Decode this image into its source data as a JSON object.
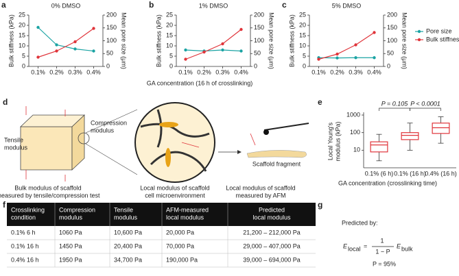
{
  "chart_data": [
    {
      "type": "line",
      "label": "a",
      "title": "0% DMSO",
      "ylabel": "Bulk stiffness (kPa)",
      "y2label": "Mean pore size (μm)",
      "categories": [
        "0.1%",
        "0.2%",
        "0.3%",
        "0.4%"
      ],
      "ylim": [
        0,
        25
      ],
      "yticks": [
        0,
        5,
        10,
        15,
        20,
        25
      ],
      "y2lim": [
        0,
        200
      ],
      "y2ticks": [
        0,
        50,
        100,
        150,
        200
      ],
      "series": [
        {
          "color": "#1aa3a3",
          "axis": "y2",
          "values": [
            152,
            84,
            68,
            60
          ]
        },
        {
          "color": "#e0343a",
          "values": [
            4.5,
            7.5,
            12,
            18.5
          ]
        }
      ]
    },
    {
      "type": "line",
      "label": "b",
      "title": "1% DMSO",
      "ylabel": "Bulk stiffness (kPa)",
      "y2label": "Mean pore size (μm)",
      "xlabel": "GA concentration (16 h of crosslinking)",
      "categories": [
        "0.1%",
        "0.2%",
        "0.3%",
        "0.4%"
      ],
      "ylim": [
        0,
        25
      ],
      "yticks": [
        0,
        5,
        10,
        15,
        20,
        25
      ],
      "y2lim": [
        0,
        200
      ],
      "y2ticks": [
        0,
        50,
        100,
        150,
        200
      ],
      "series": [
        {
          "color": "#1aa3a3",
          "axis": "y2",
          "values": [
            64,
            60,
            64,
            60
          ]
        },
        {
          "color": "#e0343a",
          "values": [
            3.5,
            7,
            11,
            18
          ]
        }
      ]
    },
    {
      "type": "line",
      "label": "c",
      "title": "5% DMSO",
      "ylabel": "Bulk stiffness (kPa)",
      "y2label": "Mean pore size (μm)",
      "legend": "right",
      "categories": [
        "0.1%",
        "0.2%",
        "0.3%",
        "0.4%"
      ],
      "ylim": [
        0,
        25
      ],
      "yticks": [
        0,
        5,
        10,
        15,
        20,
        25
      ],
      "y2lim": [
        0,
        200
      ],
      "y2ticks": [
        0,
        50,
        100,
        150,
        200
      ],
      "series": [
        {
          "name": "Pore size",
          "color": "#1aa3a3",
          "axis": "y2",
          "values": [
            34,
            33,
            34,
            34
          ]
        },
        {
          "name": "Bulk stiffness",
          "color": "#e0343a",
          "values": [
            3.5,
            6,
            10.5,
            16.5
          ]
        }
      ]
    },
    {
      "type": "box",
      "label": "e",
      "ylabel": [
        "Local Young's",
        "modulus (kPa)"
      ],
      "xlabel": "GA concentration (crosslinking time)",
      "log": true,
      "color": "#e0343a",
      "categories": [
        "0.1% (6 h)",
        "0.1% (16 h)",
        "0.4% (16 h)"
      ],
      "ylim": [
        1,
        1000
      ],
      "yticks": [
        10,
        100,
        1000
      ],
      "boxes": [
        {
          "min": 2.5,
          "q1": 8,
          "median": 20,
          "q3": 30,
          "max": 80
        },
        {
          "min": 10,
          "q1": 40,
          "median": 70,
          "q3": 100,
          "max": 350
        },
        {
          "min": 25,
          "q1": 90,
          "median": 190,
          "q3": 350,
          "max": 800
        }
      ],
      "annotations": [
        "P = 0.105",
        "P < 0.0001"
      ]
    }
  ],
  "diagram": {
    "label": "d",
    "tensile": [
      "Tensile",
      "modulus"
    ],
    "compression": [
      "Compression",
      "modulus"
    ],
    "fragment": "Scaffold fragment",
    "captions": [
      [
        "Bulk modulus of scaffold",
        "measured by tensile/compression test"
      ],
      [
        "Local modulus of scaffold",
        "cell microenvironment"
      ],
      [
        "Local modulus of scaffold",
        "measured by AFM"
      ]
    ]
  },
  "table": {
    "label": "f",
    "header": [
      [
        "Crosslinking",
        "condition"
      ],
      [
        "Compression",
        "modulus"
      ],
      [
        "Tensile",
        "modulus"
      ],
      [
        "AFM-measured",
        "local modulus"
      ],
      [
        "Predicted",
        "local modulus"
      ]
    ],
    "rows": [
      [
        "0.1% 6 h",
        "1060 Pa",
        "10,600 Pa",
        "20,000 Pa",
        "21,200 – 212,000 Pa"
      ],
      [
        "0.1% 16 h",
        "1450 Pa",
        "20,400 Pa",
        "70,000 Pa",
        "29,000 – 407,000 Pa"
      ],
      [
        "0.4% 16 h",
        "1950 Pa",
        "34,700 Pa",
        "190,000 Pa",
        "39,000 – 694,000 Pa"
      ]
    ]
  },
  "formula": {
    "label": "g",
    "intro": "Predicted by:",
    "lhs": "E",
    "lhs_sub": "local",
    "equals": "=",
    "numerator": "1",
    "denominator": "1 − P",
    "rhs": "E",
    "rhs_sub": "bulk",
    "p": "P = 95%"
  }
}
